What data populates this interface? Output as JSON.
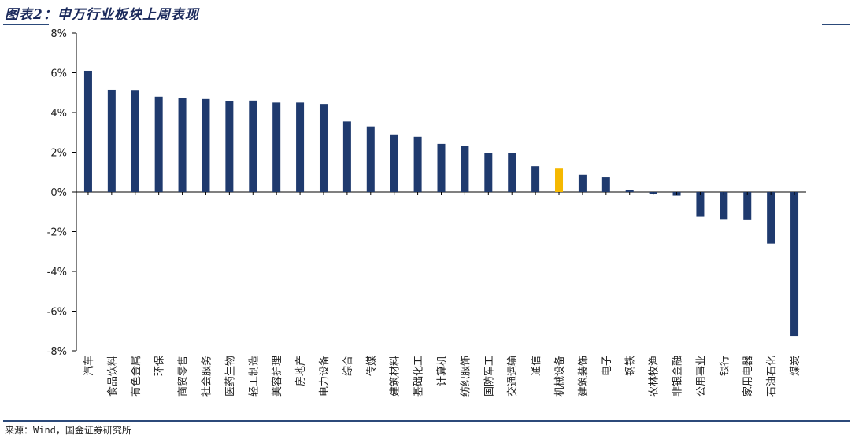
{
  "header": {
    "title": "图表2：申万行业板块上周表现"
  },
  "footer": {
    "source": "来源：Wind，国金证券研究所"
  },
  "chart_data": {
    "type": "bar",
    "title": "图表2：申万行业板块上周表现",
    "ylim": [
      -8,
      8
    ],
    "yticks": [
      "8%",
      "6%",
      "4%",
      "2%",
      "0%",
      "-2%",
      "-4%",
      "-6%",
      "-8%"
    ],
    "ytick_values": [
      8,
      6,
      4,
      2,
      0,
      -2,
      -4,
      -6,
      -8
    ],
    "categories": [
      "汽车",
      "食品饮料",
      "有色金属",
      "环保",
      "商贸零售",
      "社会服务",
      "医药生物",
      "轻工制造",
      "美容护理",
      "房地产",
      "电力设备",
      "综合",
      "传媒",
      "建筑材料",
      "基础化工",
      "计算机",
      "纺织服饰",
      "国防军工",
      "交通运输",
      "通信",
      "机械设备",
      "建筑装饰",
      "电子",
      "钢铁",
      "农林牧渔",
      "非银金融",
      "公用事业",
      "银行",
      "家用电器",
      "石油石化",
      "煤炭"
    ],
    "values": [
      6.1,
      5.15,
      5.1,
      4.8,
      4.75,
      4.68,
      4.58,
      4.6,
      4.5,
      4.5,
      4.43,
      3.55,
      3.3,
      2.9,
      2.78,
      2.42,
      2.3,
      1.95,
      1.95,
      1.3,
      1.18,
      0.88,
      0.75,
      0.1,
      -0.1,
      -0.18,
      -1.25,
      -1.4,
      -1.42,
      -2.6,
      -7.25
    ],
    "highlight_category": "机械设备",
    "colors": {
      "bar": "#1f3a6e",
      "bar_dark": "#0e2a66",
      "highlight": "#f5b800",
      "axis": "#000000"
    },
    "grid": false,
    "legend": "none"
  }
}
